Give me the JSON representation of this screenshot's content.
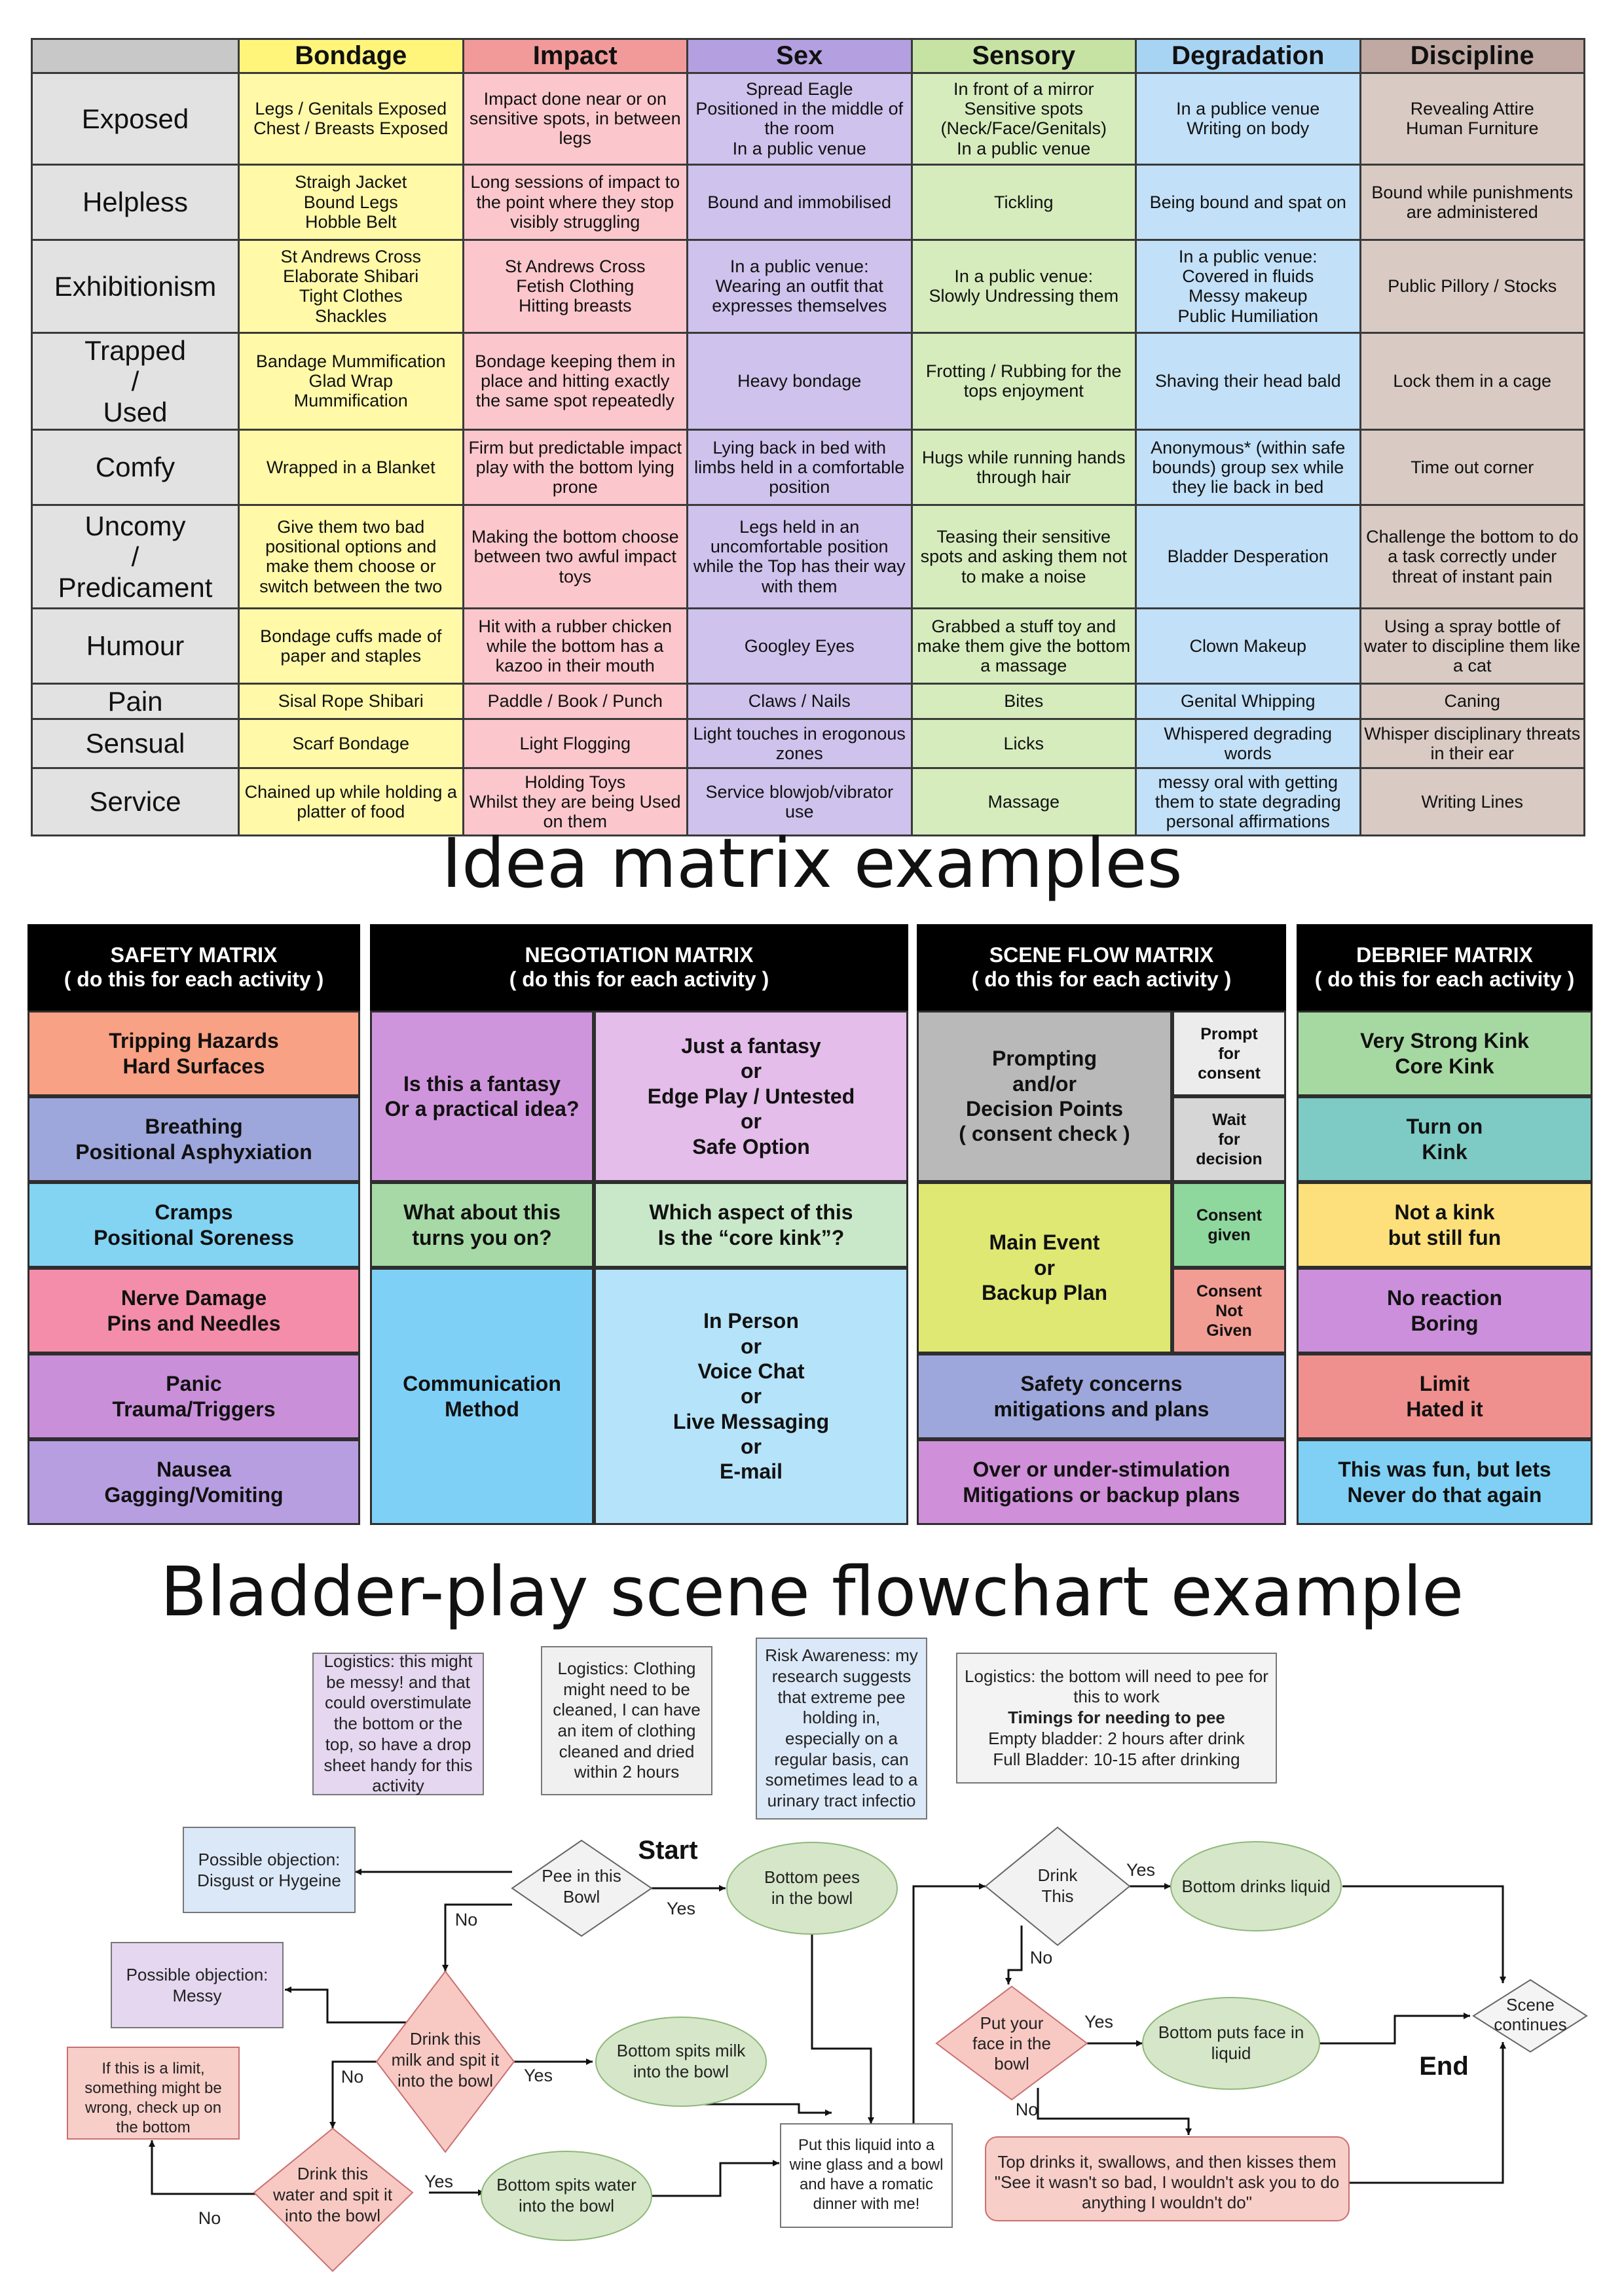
{
  "kink_table": {
    "columns": [
      {
        "label": "Bondage",
        "color": "#fef57a",
        "cell_color": "#fff9a8"
      },
      {
        "label": "Impact",
        "color": "#f29a9a",
        "cell_color": "#fbc7cc"
      },
      {
        "label": "Sex",
        "color": "#b4a0e0",
        "cell_color": "#cfc2ec"
      },
      {
        "label": "Sensory",
        "color": "#c6e3a4",
        "cell_color": "#d6ecbd"
      },
      {
        "label": "Degradation",
        "color": "#a8d4f4",
        "cell_color": "#c2e0f7"
      },
      {
        "label": "Discipline",
        "color": "#bfa9a2",
        "cell_color": "#d9cac4"
      }
    ],
    "rows": [
      {
        "label": "Exposed",
        "cells": [
          "Legs / Genitals Exposed\nChest / Breasts Exposed",
          "Impact done near or on sensitive spots, in between legs",
          "Spread Eagle\nPositioned in the middle of the room\nIn a public venue",
          "In front of a mirror\nSensitive spots (Neck/Face/Genitals)\nIn a public venue",
          "In a publice venue\nWriting on body",
          "Revealing Attire\nHuman Furniture"
        ]
      },
      {
        "label": "Helpless",
        "cells": [
          "Straigh Jacket\nBound Legs\nHobble Belt",
          "Long sessions of impact to the point where they stop visibly struggling",
          "Bound and immobilised",
          "Tickling",
          "Being bound and spat on",
          "Bound while punishments are administered"
        ]
      },
      {
        "label": "Exhibitionism",
        "cells": [
          "St Andrews Cross\nElaborate Shibari\nTight Clothes\nShackles",
          "St Andrews Cross\nFetish Clothing\nHitting breasts",
          "In a public venue:\nWearing an outfit that expresses themselves",
          "In a public venue:\nSlowly Undressing them",
          "In a public venue:\nCovered in fluids\nMessy makeup\nPublic Humiliation",
          "Public Pillory / Stocks"
        ]
      },
      {
        "label": "Trapped\n/\nUsed",
        "cells": [
          "Bandage Mummification\nGlad Wrap\nMummification",
          "Bondage keeping them in place and hitting exactly the same spot repeatedly",
          "Heavy bondage",
          "Frotting / Rubbing for the tops enjoyment",
          "Shaving their head bald",
          "Lock them in a cage"
        ]
      },
      {
        "label": "Comfy",
        "cells": [
          "Wrapped in a Blanket",
          "Firm but predictable impact play with the bottom lying prone",
          "Lying back in bed with limbs held in a comfortable position",
          "Hugs while running hands through hair",
          "Anonymous* (within safe bounds) group sex while they lie back in bed",
          "Time out corner"
        ]
      },
      {
        "label": "Uncomy\n/\nPredicament",
        "cells": [
          "Give them two bad positional options and make them choose or switch between the two",
          "Making the bottom choose between two awful impact toys",
          "Legs held in an uncomfortable position while the Top has their way with them",
          "Teasing their sensitive spots and asking them not to make a noise",
          "Bladder Desperation",
          "Challenge the bottom to do a task correctly under threat of instant pain"
        ]
      },
      {
        "label": "Humour",
        "cells": [
          "Bondage cuffs made of paper and staples",
          "Hit with a rubber chicken while the bottom has a kazoo in their mouth",
          "Googley Eyes",
          "Grabbed a stuff toy and make them give the bottom a massage",
          "Clown Makeup",
          "Using a spray bottle of water to discipline them like a cat"
        ]
      },
      {
        "label": "Pain",
        "cells": [
          "Sisal Rope Shibari",
          "Paddle / Book / Punch",
          "Claws / Nails",
          "Bites",
          "Genital Whipping",
          "Caning"
        ]
      },
      {
        "label": "Sensual",
        "cells": [
          "Scarf Bondage",
          "Light Flogging",
          "Light touches in erogonous zones",
          "Licks",
          "Whispered degrading words",
          "Whisper disciplinary threats in their ear"
        ]
      },
      {
        "label": "Service",
        "cells": [
          "Chained up while holding a platter of food",
          "Holding Toys\nWhilst they are being Used on them",
          "Service blowjob/vibrator use",
          "Massage",
          "messy oral with getting them to state degrading personal affirmations",
          "Writing Lines"
        ]
      }
    ]
  },
  "titles": {
    "matrix_section": "Idea matrix examples",
    "flowchart_section": "Bladder-play scene flowchart example"
  },
  "matrices": {
    "safety": {
      "header": "SAFETY MATRIX\n( do this for each activity )",
      "items": [
        {
          "text": "Tripping Hazards\nHard Surfaces",
          "color": "#f9a184"
        },
        {
          "text": "Breathing\nPositional Asphyxiation",
          "color": "#9ea7dc"
        },
        {
          "text": "Cramps\nPositional Soreness",
          "color": "#83d3f3"
        },
        {
          "text": "Nerve Damage\nPins and Needles",
          "color": "#f48da9"
        },
        {
          "text": "Panic\nTrauma/Triggers",
          "color": "#c98fd9"
        },
        {
          "text": "Nausea\nGagging/Vomiting",
          "color": "#b79ee0"
        }
      ]
    },
    "negotiation": {
      "header": "NEGOTIATION MATRIX\n( do this for each activity )",
      "rows": [
        {
          "left": "Is this a fantasy\nOr a practical idea?",
          "right": "Just a fantasy\nor\nEdge Play / Untested\nor\nSafe Option",
          "left_color": "#cf95dc",
          "right_color": "#e4bdea"
        },
        {
          "left": "What about this\nturns you on?",
          "right": "Which aspect of this\nIs the “core kink”?",
          "left_color": "#a6d9a6",
          "right_color": "#c9e8c9"
        },
        {
          "left": "Communication\nMethod",
          "right": "In Person\nor\nVoice Chat\nor\nLive Messaging\nor\nE-mail",
          "left_color": "#7fd0f6",
          "right_color": "#b5e3f9"
        }
      ]
    },
    "scene_flow": {
      "header": "SCENE FLOW MATRIX\n( do this for each activity )",
      "prompting": "Prompting\nand/or\nDecision Points\n( consent check )",
      "prompt_consent": "Prompt\nfor\nconsent",
      "wait_decision": "Wait\nfor\ndecision",
      "main_event": "Main Event\nor\nBackup Plan",
      "consent_given": "Consent\ngiven",
      "consent_not_given": "Consent\nNot\nGiven",
      "safety": "Safety concerns\nmitigations and plans",
      "stimulation": "Over or under-stimulation\nMitigations or backup plans"
    },
    "debrief": {
      "header": "DEBRIEF MATRIX\n( do this for each activity )",
      "items": [
        {
          "text": "Very Strong Kink\nCore Kink",
          "color": "#a6d9a2"
        },
        {
          "text": "Turn on\nKink",
          "color": "#7dcbc4"
        },
        {
          "text": "Not a kink\nbut still fun",
          "color": "#fde07b"
        },
        {
          "text": "No reaction\nBoring",
          "color": "#cb8fdc"
        },
        {
          "text": "Limit\nHated it",
          "color": "#f0908e"
        },
        {
          "text": "This was fun, but lets\nNever do that again",
          "color": "#7fd0f4"
        }
      ]
    }
  },
  "flowchart": {
    "notes": {
      "messy": "Logistics: this might be messy! and that could overstimulate the bottom or the top, so have a drop sheet handy for this activity",
      "clothing": "Logistics: Clothing might need to be cleaned, I can have an item of clothing cleaned and dried within 2 hours",
      "risk": "Risk Awareness: my research suggests that extreme pee holding in, especially on a regular basis, can sometimes lead to a urinary tract infectio",
      "timings_intro": "Logistics: the bottom will need to pee for this to work",
      "timings_head": "Timings for needing to pee",
      "timings_empty": "Empty bladder: 2 hours after drink",
      "timings_full": "Full Bladder: 10-15 after drinking"
    },
    "nodes": {
      "pee_bowl": "Pee in this\nBowl",
      "start": "Start",
      "bottom_pees": "Bottom pees\nin the bowl",
      "obj_disgust": "Possible objection:\nDisgust or Hygeine",
      "obj_messy": "Possible objection:\nMessy",
      "milk": "Drink this\nmilk and spit it\ninto the bowl",
      "spits_milk": "Bottom spits milk\ninto the bowl",
      "limit_note": "If this is a limit,\nsomething might be\nwrong, check up on\nthe bottom",
      "water": "Drink this\nwater and spit it\ninto the bowl",
      "spits_water": "Bottom spits water\ninto the bowl",
      "wine_glass": "Put this liquid into a\nwine glass and a bowl\nand have a romatic\ndinner with me!",
      "drink_this": "Drink\nThis",
      "drinks_liquid": "Bottom drinks liquid",
      "face_bowl": "Put your\nface in the\nbowl",
      "face_liquid": "Bottom puts face in\nliquid",
      "scene_continues": "Scene\ncontinues",
      "end": "End",
      "top_drinks": "Top drinks it, swallows, and then kisses them\n\"See it wasn't so bad, I wouldn't ask you to do\nanything I wouldn't do\""
    },
    "labels": {
      "yes": "Yes",
      "no": "No"
    }
  }
}
